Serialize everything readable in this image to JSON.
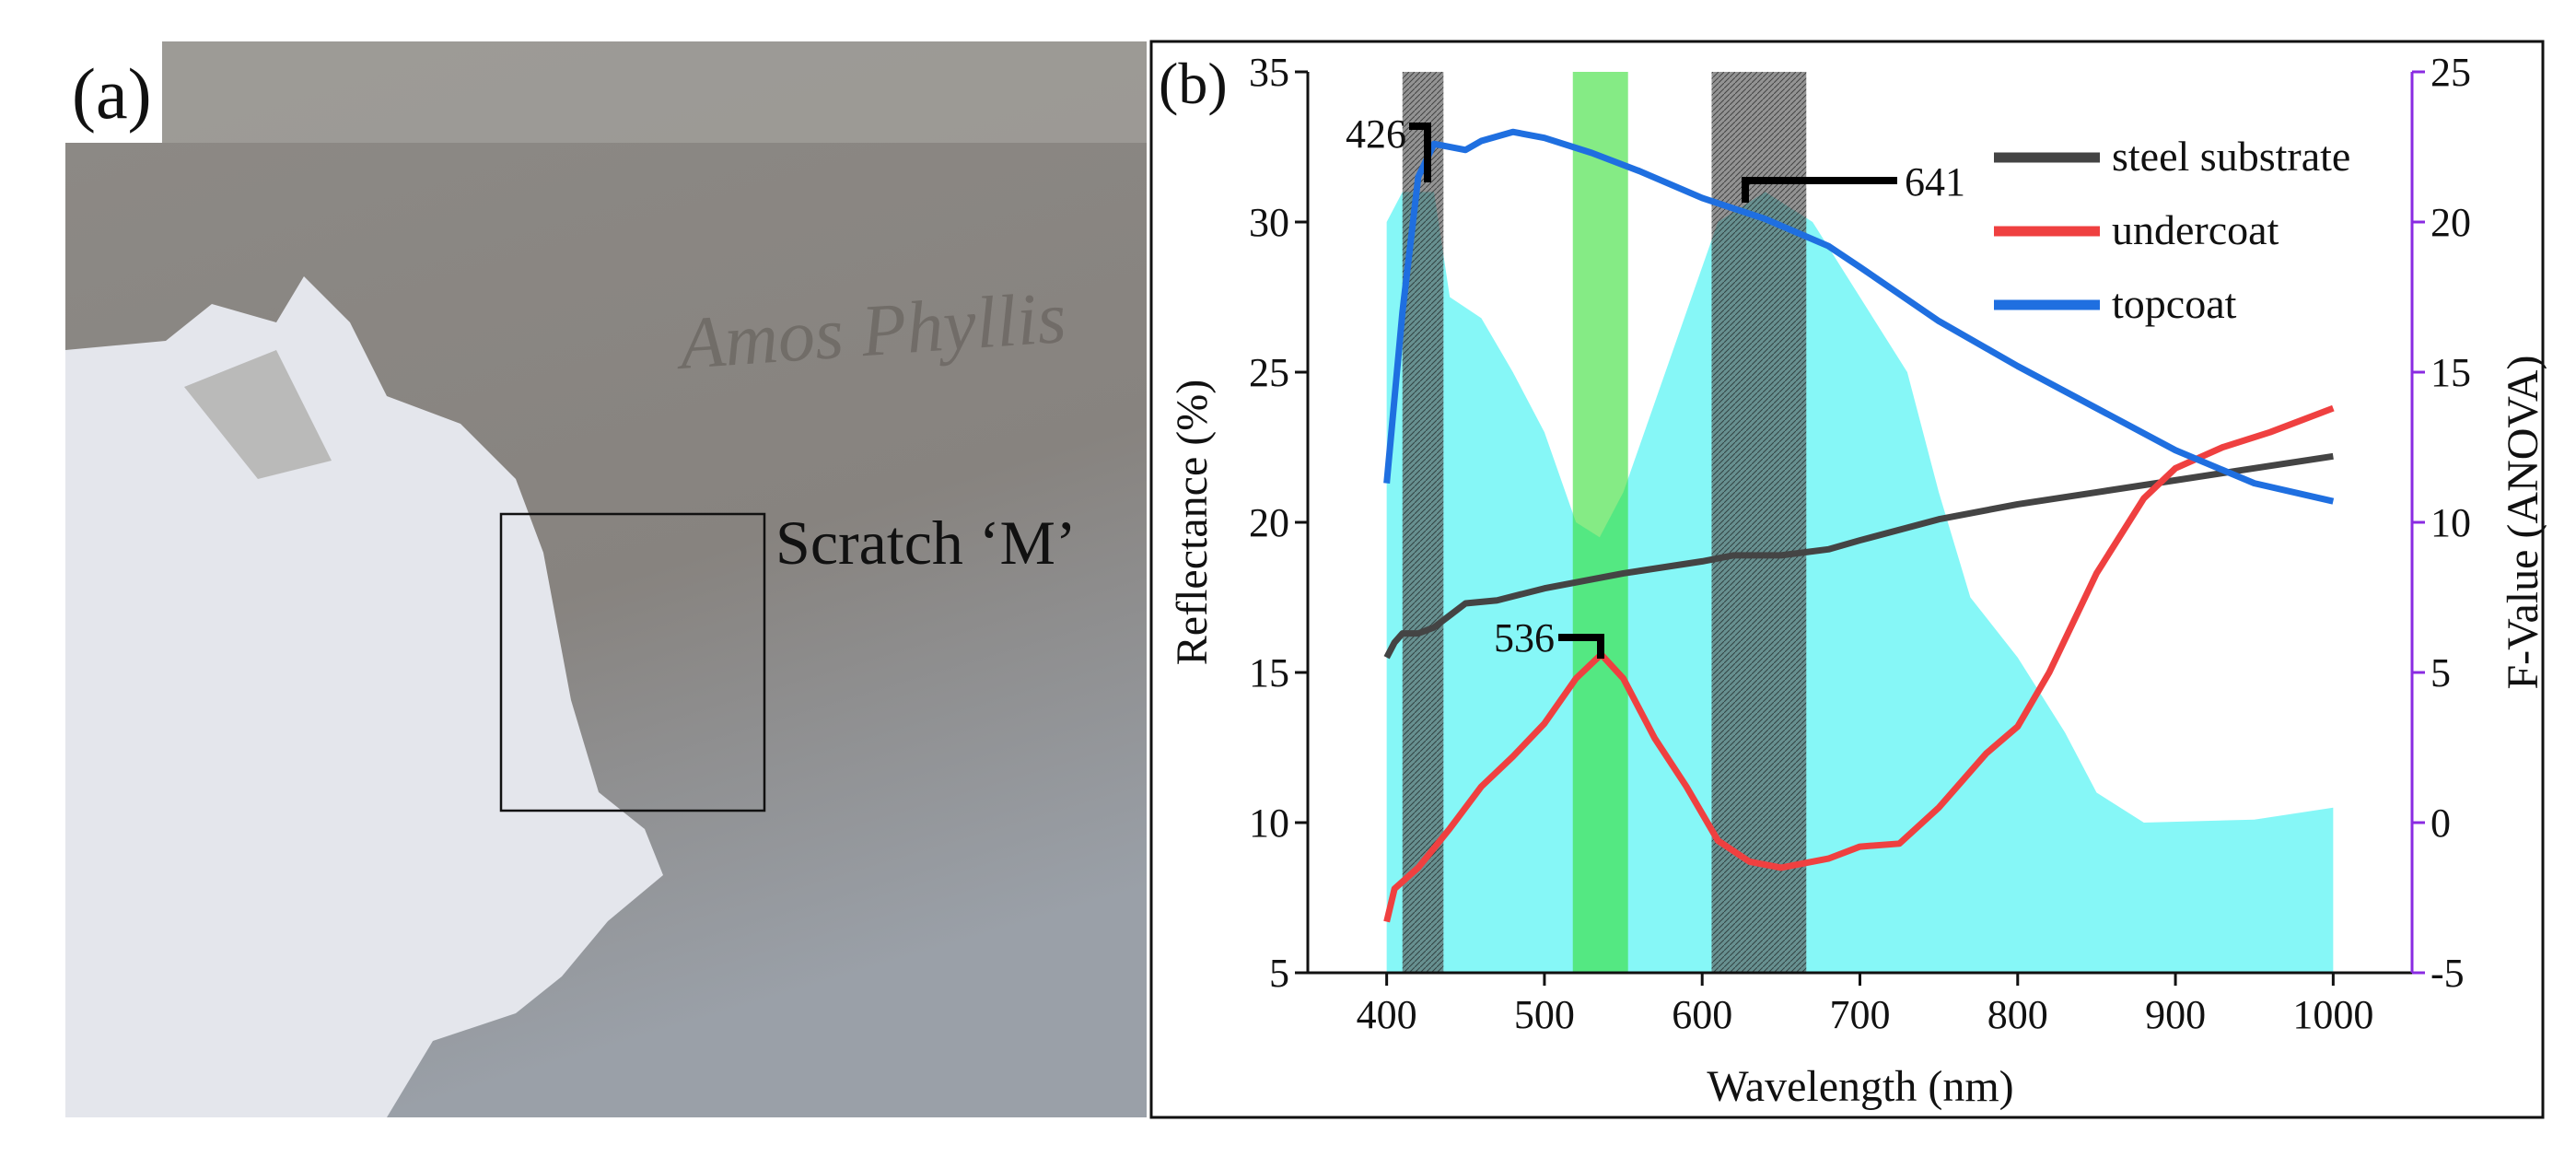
{
  "panel_a": {
    "label": "(a)",
    "annotation": "Scratch ‘M’",
    "handwriting": "Amos Phyllis"
  },
  "chart_data": {
    "type": "line",
    "panel_label": "(b)",
    "xlabel": "Wavelength (nm)",
    "ylabel": "Reflectance (%)",
    "y2label": "F-Value (ANOVA)",
    "xlim": [
      350,
      1050
    ],
    "ylim": [
      5,
      35
    ],
    "y2lim": [
      -5,
      25
    ],
    "xticks": [
      400,
      500,
      600,
      700,
      800,
      900,
      1000
    ],
    "yticks": [
      5,
      10,
      15,
      20,
      25,
      30,
      35
    ],
    "y2ticks": [
      -5,
      0,
      5,
      10,
      15,
      20,
      25
    ],
    "legend_position": "top-right",
    "series": [
      {
        "name": "steel substrate",
        "color": "#444444",
        "x": [
          400,
          405,
          410,
          420,
          430,
          440,
          450,
          470,
          500,
          550,
          600,
          620,
          650,
          680,
          700,
          750,
          800,
          850,
          900,
          950,
          1000
        ],
        "y": [
          15.5,
          16,
          16.3,
          16.3,
          16.5,
          16.9,
          17.3,
          17.4,
          17.8,
          18.3,
          18.7,
          18.9,
          18.9,
          19.1,
          19.4,
          20.1,
          20.6,
          21.0,
          21.4,
          21.8,
          22.2
        ]
      },
      {
        "name": "undercoat",
        "color": "#ef4040",
        "x": [
          400,
          405,
          420,
          440,
          460,
          480,
          500,
          520,
          536,
          550,
          570,
          590,
          610,
          630,
          650,
          680,
          700,
          725,
          750,
          780,
          800,
          820,
          850,
          880,
          900,
          930,
          960,
          1000
        ],
        "y": [
          6.7,
          7.8,
          8.5,
          9.8,
          11.2,
          12.2,
          13.3,
          14.8,
          15.6,
          14.8,
          12.8,
          11.2,
          9.4,
          8.7,
          8.5,
          8.8,
          9.2,
          9.3,
          10.5,
          12.3,
          13.2,
          15,
          18.3,
          20.8,
          21.8,
          22.5,
          23,
          23.8
        ]
      },
      {
        "name": "topcoat",
        "color": "#1f6fe0",
        "x": [
          400,
          410,
          420,
          430,
          450,
          460,
          480,
          500,
          530,
          560,
          600,
          640,
          680,
          700,
          750,
          800,
          850,
          900,
          950,
          1000
        ],
        "y": [
          21.3,
          27,
          31.5,
          32.6,
          32.4,
          32.7,
          33,
          32.8,
          32.3,
          31.7,
          30.8,
          30.1,
          29.2,
          28.5,
          26.7,
          25.2,
          23.8,
          22.4,
          21.3,
          20.7
        ]
      }
    ],
    "area": {
      "name": "F-Value (ANOVA)",
      "axis": "right",
      "color": "#7ff7f7",
      "x": [
        400,
        410,
        430,
        440,
        460,
        480,
        500,
        520,
        535,
        550,
        570,
        590,
        610,
        640,
        670,
        700,
        730,
        750,
        770,
        800,
        830,
        850,
        880,
        950,
        1000
      ],
      "y": [
        20,
        21,
        21,
        17.5,
        16.8,
        15,
        13,
        10,
        9.5,
        11,
        14,
        17,
        20,
        21,
        20,
        17.5,
        15,
        11,
        7.5,
        5.5,
        3,
        1,
        0,
        0.1,
        0.5
      ]
    },
    "bands": [
      {
        "from": 410,
        "to": 436,
        "color": "#555555"
      },
      {
        "from": 518,
        "to": 553,
        "color": "#33dd33"
      },
      {
        "from": 606,
        "to": 666,
        "color": "#555555"
      }
    ],
    "annotations": [
      {
        "text": "426",
        "x": 426,
        "y": 31
      },
      {
        "text": "641",
        "x": 641,
        "y": 31
      },
      {
        "text": "536",
        "x": 536,
        "y": 15.6
      }
    ]
  }
}
